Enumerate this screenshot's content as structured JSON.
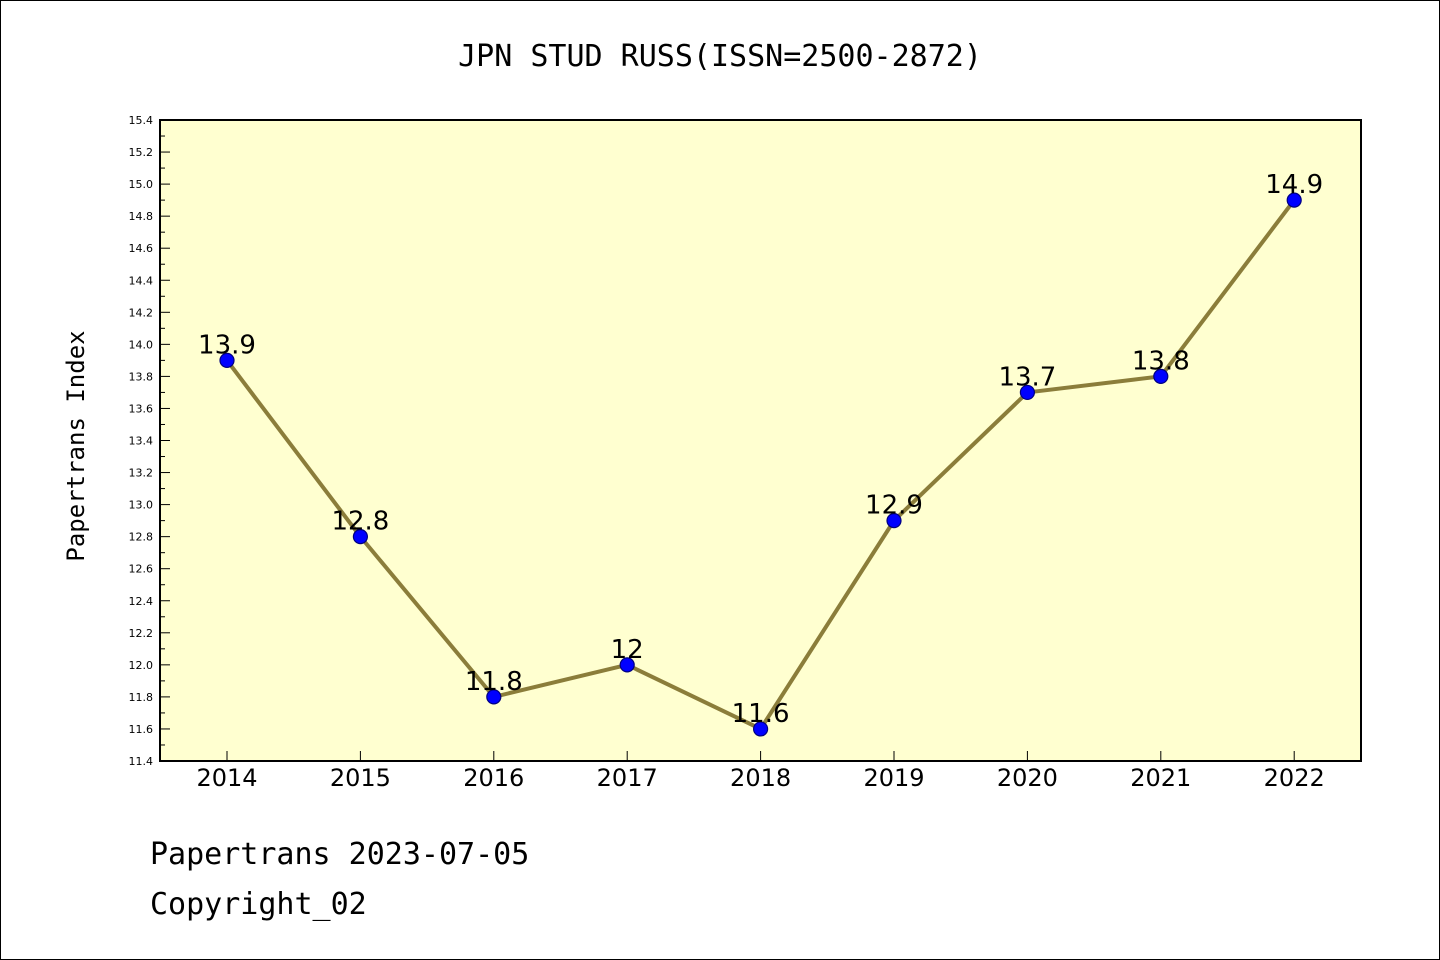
{
  "chart_data": {
    "type": "line",
    "title": "JPN STUD RUSS(ISSN=2500-2872)",
    "xlabel": "",
    "ylabel": "Papertrans Index",
    "categories": [
      "2014",
      "2015",
      "2016",
      "2017",
      "2018",
      "2019",
      "2020",
      "2021",
      "2022"
    ],
    "values": [
      13.9,
      12.8,
      11.8,
      12,
      11.6,
      12.9,
      13.7,
      13.8,
      14.9
    ],
    "data_labels": [
      "13.9",
      "12.8",
      "11.8",
      "12",
      "11.6",
      "12.9",
      "13.7",
      "13.8",
      "14.9"
    ],
    "ylim": [
      11.4,
      15.4
    ],
    "yticks": [
      "11.4",
      "11.6",
      "11.8",
      "12.0",
      "12.2",
      "12.4",
      "12.6",
      "12.8",
      "13.0",
      "13.2",
      "13.4",
      "13.6",
      "13.8",
      "14.0",
      "14.2",
      "14.4",
      "14.6",
      "14.8",
      "15.0",
      "15.2",
      "15.4"
    ],
    "grid": false,
    "colors": {
      "plot_background": "#ffffd0",
      "line": "#8b7d3a",
      "marker": "#0000ff",
      "marker_edge": "#000080"
    }
  },
  "footer": {
    "line1": "Papertrans 2023-07-05",
    "line2": "Copyright_02"
  }
}
